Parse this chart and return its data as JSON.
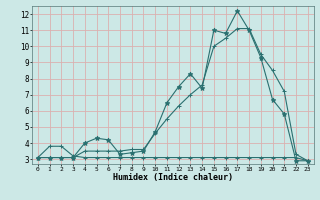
{
  "xlabel": "Humidex (Indice chaleur)",
  "bg_color": "#cce8e6",
  "grid_color": "#dbb0b0",
  "line_color": "#2a7070",
  "xlim": [
    -0.5,
    23.5
  ],
  "ylim": [
    2.7,
    12.5
  ],
  "xticks": [
    0,
    1,
    2,
    3,
    4,
    5,
    6,
    7,
    8,
    9,
    10,
    11,
    12,
    13,
    14,
    15,
    16,
    17,
    18,
    19,
    20,
    21,
    22,
    23
  ],
  "yticks": [
    3,
    4,
    5,
    6,
    7,
    8,
    9,
    10,
    11,
    12
  ],
  "line1_x": [
    0,
    1,
    2,
    3,
    4,
    5,
    6,
    7,
    8,
    9,
    10,
    11,
    12,
    13,
    14,
    15,
    16,
    17,
    18,
    19,
    20,
    21,
    22,
    23
  ],
  "line1_y": [
    3.1,
    3.8,
    3.8,
    3.2,
    3.1,
    3.1,
    3.1,
    3.1,
    3.1,
    3.1,
    3.1,
    3.1,
    3.1,
    3.1,
    3.1,
    3.1,
    3.1,
    3.1,
    3.1,
    3.1,
    3.1,
    3.1,
    3.1,
    2.9
  ],
  "line2_x": [
    0,
    1,
    2,
    3,
    4,
    5,
    6,
    7,
    8,
    9,
    10,
    11,
    12,
    13,
    14,
    15,
    16,
    17,
    18,
    19,
    20,
    21,
    22,
    23
  ],
  "line2_y": [
    3.1,
    3.1,
    3.1,
    3.1,
    4.0,
    4.3,
    4.2,
    3.3,
    3.4,
    3.5,
    4.7,
    6.5,
    7.5,
    8.3,
    7.4,
    11.0,
    10.8,
    12.2,
    11.0,
    9.3,
    6.7,
    5.8,
    2.9,
    2.9
  ],
  "line3_x": [
    0,
    1,
    2,
    3,
    4,
    5,
    6,
    7,
    8,
    9,
    10,
    11,
    12,
    13,
    14,
    15,
    16,
    17,
    18,
    19,
    20,
    21,
    22,
    23
  ],
  "line3_y": [
    3.1,
    3.1,
    3.1,
    3.1,
    3.5,
    3.5,
    3.5,
    3.5,
    3.6,
    3.6,
    4.6,
    5.5,
    6.3,
    7.0,
    7.6,
    10.0,
    10.5,
    11.1,
    11.1,
    9.5,
    8.5,
    7.2,
    3.3,
    2.9
  ]
}
